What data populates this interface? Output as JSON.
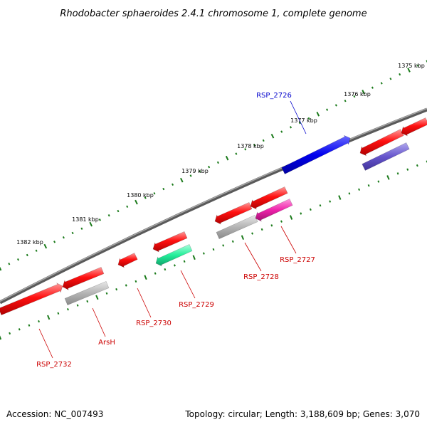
{
  "title": "Rhodobacter sphaeroides 2.4.1 chromosome 1, complete genome",
  "accession": "Accession: NC_007493",
  "summary": "Topology: circular; Length: 3,188,609 bp; Genes: 3,070",
  "colors": {
    "forward_gene": "#ff0000",
    "reverse_gene_gray": "#b0b0b0",
    "highlight_blue": "#0000ee",
    "rsp2729_green": "#22ee99",
    "rsp2727_magenta": "#ee22aa",
    "right_reverse_purple": "#6655cc",
    "backbone": "#808080",
    "tick_green": "#1a7a1a",
    "label_red": "#cc0000",
    "label_blue": "#0000cc"
  },
  "ticks": [
    {
      "label": "1375 kbp"
    },
    {
      "label": "1376 kbp"
    },
    {
      "label": "1377 kbp"
    },
    {
      "label": "1378 kbp"
    },
    {
      "label": "1379 kbp"
    },
    {
      "label": "1380 kbp"
    },
    {
      "label": "1381 kbp"
    },
    {
      "label": "1382 kbp"
    }
  ],
  "gene_labels": [
    {
      "name": "RSP_2726",
      "color": "blue"
    },
    {
      "name": "RSP_2727",
      "color": "red"
    },
    {
      "name": "RSP_2728",
      "color": "red"
    },
    {
      "name": "RSP_2729",
      "color": "red"
    },
    {
      "name": "RSP_2730",
      "color": "red"
    },
    {
      "name": "ArsH",
      "color": "red"
    },
    {
      "name": "RSP_2732",
      "color": "red"
    }
  ]
}
